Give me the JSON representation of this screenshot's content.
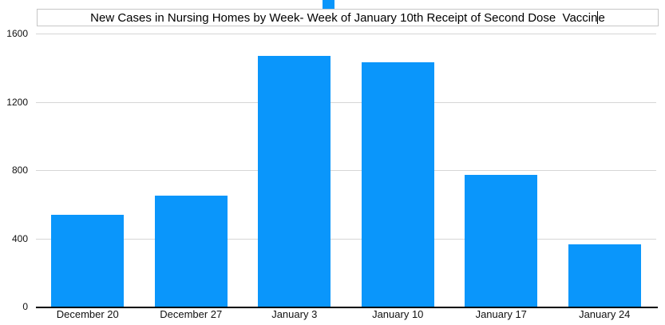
{
  "chart_data": {
    "type": "bar",
    "title": "New Cases in Nursing Homes by Week- Week of January 10th Receipt of Second Dose  Vaccine",
    "categories": [
      "December 20",
      "December 27",
      "January 3",
      "January 10",
      "January 17",
      "January 24"
    ],
    "values": [
      540,
      650,
      1470,
      1430,
      770,
      365
    ],
    "xlabel": "",
    "ylabel": "",
    "ylim": [
      0,
      1600
    ],
    "yticks": [
      0,
      400,
      800,
      1200,
      1600
    ],
    "grid": true,
    "legend_position": "top",
    "bar_color": "#0a96fb"
  },
  "title_editor": {
    "text_before_caret": "New Cases in Nursing Homes by Week- Week of January 10th Receipt of Second Dose  Vaccin",
    "text_after_caret": "e"
  },
  "colors": {
    "bar": "#0a96fb",
    "gridline": "#d6d6d6",
    "axis": "#000000",
    "title_border": "#c6c6c6"
  }
}
